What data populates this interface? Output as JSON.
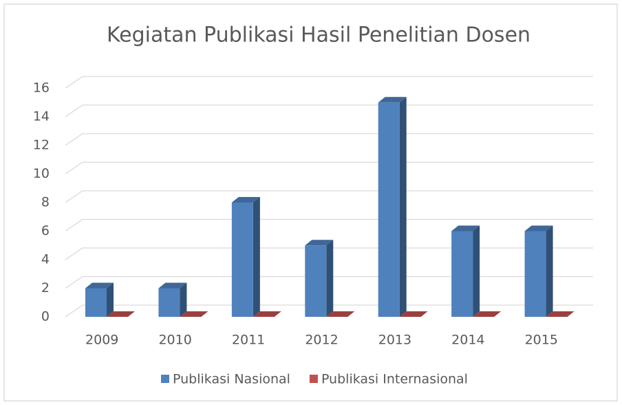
{
  "chart_data": {
    "type": "bar3d",
    "title": "Kegiatan Publikasi Hasil Penelitian Dosen",
    "categories": [
      "2009",
      "2010",
      "2011",
      "2012",
      "2013",
      "2014",
      "2015"
    ],
    "series": [
      {
        "name": "Publikasi Nasional",
        "color": "#4f81bd",
        "values": [
          2,
          2,
          8,
          5,
          15,
          6,
          6
        ]
      },
      {
        "name": "Publikasi Internasional",
        "color": "#c0504d",
        "values": [
          0,
          0,
          0,
          0,
          0,
          0,
          0
        ]
      }
    ],
    "ylim": [
      0,
      16
    ],
    "yticks": [
      0,
      2,
      4,
      6,
      8,
      10,
      12,
      14,
      16
    ],
    "grid": true,
    "legend": "bottom"
  }
}
